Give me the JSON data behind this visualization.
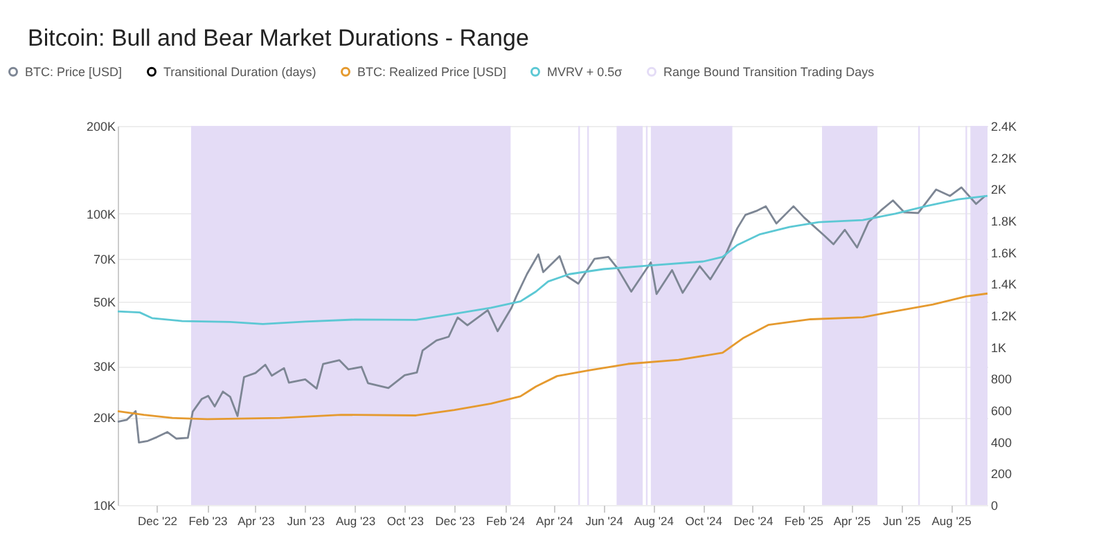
{
  "chart_data": {
    "type": "line",
    "title": "Bitcoin: Bull and Bear Market Durations - Range",
    "series": [
      {
        "name": "BTC: Price [USD]",
        "color": "#7d8694",
        "x": [
          "2022-10-14",
          "2022-10-25",
          "2022-11-05",
          "2022-11-09",
          "2022-11-20",
          "2022-12-01",
          "2022-12-14",
          "2022-12-25",
          "2023-01-08",
          "2023-01-14",
          "2023-01-25",
          "2023-02-02",
          "2023-02-10",
          "2023-02-20",
          "2023-03-01",
          "2023-03-10",
          "2023-03-18",
          "2023-04-01",
          "2023-04-13",
          "2023-04-21",
          "2023-05-06",
          "2023-05-12",
          "2023-06-01",
          "2023-06-15",
          "2023-06-23",
          "2023-07-13",
          "2023-07-24",
          "2023-08-09",
          "2023-08-17",
          "2023-09-11",
          "2023-10-01",
          "2023-10-16",
          "2023-10-23",
          "2023-11-09",
          "2023-11-24",
          "2023-12-05",
          "2023-12-17",
          "2024-01-11",
          "2024-01-23",
          "2024-02-09",
          "2024-02-15",
          "2024-02-28",
          "2024-03-13",
          "2024-03-19",
          "2024-04-08",
          "2024-04-17",
          "2024-05-01",
          "2024-05-21",
          "2024-06-07",
          "2024-06-18",
          "2024-07-05",
          "2024-07-29",
          "2024-08-05",
          "2024-08-24",
          "2024-09-06",
          "2024-09-27",
          "2024-10-10",
          "2024-10-29",
          "2024-11-12",
          "2024-11-22",
          "2024-12-05",
          "2024-12-17",
          "2024-12-30",
          "2025-01-20",
          "2025-02-02",
          "2025-02-27",
          "2025-03-10",
          "2025-03-24",
          "2025-04-08",
          "2025-04-22",
          "2025-05-08",
          "2025-05-22",
          "2025-06-05",
          "2025-06-22",
          "2025-07-14",
          "2025-07-31",
          "2025-08-14",
          "2025-09-01",
          "2025-09-12"
        ],
        "values": [
          19300,
          19600,
          21000,
          16400,
          16600,
          17100,
          17800,
          16900,
          17000,
          20900,
          23100,
          23700,
          21800,
          24500,
          23500,
          20200,
          27500,
          28400,
          30300,
          27800,
          29500,
          26300,
          27000,
          25100,
          30500,
          31400,
          29200,
          29800,
          26200,
          25200,
          27900,
          28500,
          33900,
          36700,
          37800,
          44000,
          41400,
          46600,
          39500,
          47500,
          52000,
          62000,
          72500,
          63000,
          71500,
          61000,
          57500,
          70000,
          71000,
          65000,
          54000,
          68000,
          53000,
          64000,
          53500,
          66000,
          59500,
          72500,
          89000,
          99000,
          102000,
          106000,
          92500,
          106000,
          97000,
          84000,
          78500,
          88000,
          76500,
          93500,
          103000,
          111000,
          101000,
          100500,
          121000,
          115000,
          123000,
          108000,
          115000
        ]
      },
      {
        "name": "Transitional Duration (days)",
        "color": "#000000",
        "axis": "y2"
      },
      {
        "name": "BTC: Realized Price [USD]",
        "color": "#e59a2f",
        "x": [
          "2022-10-14",
          "2022-11-15",
          "2022-12-20",
          "2023-02-01",
          "2023-05-01",
          "2023-07-15",
          "2023-10-15",
          "2023-12-01",
          "2024-01-15",
          "2024-02-20",
          "2024-03-10",
          "2024-04-05",
          "2024-05-15",
          "2024-07-01",
          "2024-09-01",
          "2024-10-25",
          "2024-11-20",
          "2024-12-20",
          "2025-02-10",
          "2025-04-15",
          "2025-05-20",
          "2025-07-10",
          "2025-08-20",
          "2025-09-15"
        ],
        "values": [
          21000,
          20400,
          19900,
          19700,
          19900,
          20400,
          20300,
          21200,
          22300,
          23600,
          25500,
          27700,
          29000,
          30500,
          31500,
          33300,
          37500,
          41500,
          43400,
          44100,
          46000,
          48800,
          52000,
          53200
        ]
      },
      {
        "name": "MVRV + 0.5σ",
        "color": "#5cc8d4",
        "x": [
          "2022-10-14",
          "2022-11-10",
          "2022-11-25",
          "2023-01-01",
          "2023-03-01",
          "2023-04-10",
          "2023-06-01",
          "2023-08-01",
          "2023-10-15",
          "2023-12-01",
          "2024-01-15",
          "2024-02-20",
          "2024-03-10",
          "2024-03-25",
          "2024-04-20",
          "2024-06-01",
          "2024-08-01",
          "2024-10-01",
          "2024-10-25",
          "2024-11-12",
          "2024-12-10",
          "2025-01-15",
          "2025-02-20",
          "2025-04-15",
          "2025-05-25",
          "2025-07-01",
          "2025-08-10",
          "2025-09-15"
        ],
        "values": [
          46200,
          45800,
          43800,
          42800,
          42500,
          41800,
          42600,
          43300,
          43200,
          45300,
          47500,
          50000,
          54000,
          58500,
          62000,
          64500,
          66500,
          68500,
          71000,
          78000,
          85000,
          90000,
          93500,
          95000,
          100000,
          106000,
          112000,
          115000
        ]
      }
    ],
    "bands": [
      {
        "axis": "x",
        "from": "2023-01-12",
        "to": "2024-02-08",
        "label": "Range Bound Transition Trading Days",
        "color": "#e4dcf6"
      },
      {
        "axis": "x",
        "from": "2024-05-01",
        "to": "2024-05-03",
        "color": "#e4dcf6"
      },
      {
        "axis": "x",
        "from": "2024-05-12",
        "to": "2024-05-14",
        "color": "#e4dcf6"
      },
      {
        "axis": "x",
        "from": "2024-06-17",
        "to": "2024-07-19",
        "color": "#e4dcf6"
      },
      {
        "axis": "x",
        "from": "2024-07-23",
        "to": "2024-07-25",
        "color": "#e4dcf6"
      },
      {
        "axis": "x",
        "from": "2024-07-29",
        "to": "2024-11-06",
        "color": "#e4dcf6"
      },
      {
        "axis": "x",
        "from": "2025-02-24",
        "to": "2025-05-03",
        "color": "#e4dcf6"
      },
      {
        "axis": "x",
        "from": "2025-06-22",
        "to": "2025-06-24",
        "color": "#e4dcf6"
      },
      {
        "axis": "x",
        "from": "2025-08-19",
        "to": "2025-08-21",
        "color": "#e4dcf6"
      },
      {
        "axis": "x",
        "from": "2025-08-25",
        "to": "2025-09-15",
        "color": "#e4dcf6"
      }
    ],
    "xlim": [
      "2022-10-14",
      "2025-09-15"
    ],
    "xticks": [
      {
        "value": "2022-12-01",
        "label": "Dec '22"
      },
      {
        "value": "2023-02-01",
        "label": "Feb '23"
      },
      {
        "value": "2023-04-01",
        "label": "Apr '23"
      },
      {
        "value": "2023-06-01",
        "label": "Jun '23"
      },
      {
        "value": "2023-08-01",
        "label": "Aug '23"
      },
      {
        "value": "2023-10-01",
        "label": "Oct '23"
      },
      {
        "value": "2023-12-01",
        "label": "Dec '23"
      },
      {
        "value": "2024-02-01",
        "label": "Feb '24"
      },
      {
        "value": "2024-04-01",
        "label": "Apr '24"
      },
      {
        "value": "2024-06-01",
        "label": "Jun '24"
      },
      {
        "value": "2024-08-01",
        "label": "Aug '24"
      },
      {
        "value": "2024-10-01",
        "label": "Oct '24"
      },
      {
        "value": "2024-12-01",
        "label": "Dec '24"
      },
      {
        "value": "2025-02-01",
        "label": "Feb '25"
      },
      {
        "value": "2025-04-01",
        "label": "Apr '25"
      },
      {
        "value": "2025-06-01",
        "label": "Jun '25"
      },
      {
        "value": "2025-08-01",
        "label": "Aug '25"
      }
    ],
    "ylim": [
      10000,
      200000
    ],
    "yticks": [
      {
        "value": 10000,
        "label": "10K"
      },
      {
        "value": 20000,
        "label": "20K"
      },
      {
        "value": 30000,
        "label": "30K"
      },
      {
        "value": 50000,
        "label": "50K"
      },
      {
        "value": 70000,
        "label": "70K"
      },
      {
        "value": 100000,
        "label": "100K"
      },
      {
        "value": 200000,
        "label": "200K"
      }
    ],
    "y2lim": [
      0,
      2400
    ],
    "y2ticks": [
      0,
      200,
      400,
      600,
      800,
      {
        "value": 1000,
        "label": "1K"
      },
      {
        "value": 1200,
        "label": "1.2K"
      },
      {
        "value": 1400,
        "label": "1.4K"
      },
      {
        "value": 1600,
        "label": "1.6K"
      },
      {
        "value": 1800,
        "label": "1.8K"
      },
      {
        "value": 2000,
        "label": "2K"
      },
      {
        "value": 2200,
        "label": "2.2K"
      },
      {
        "value": 2400,
        "label": "2.4K"
      }
    ],
    "log": true,
    "grid": "y",
    "legend": "top left"
  }
}
